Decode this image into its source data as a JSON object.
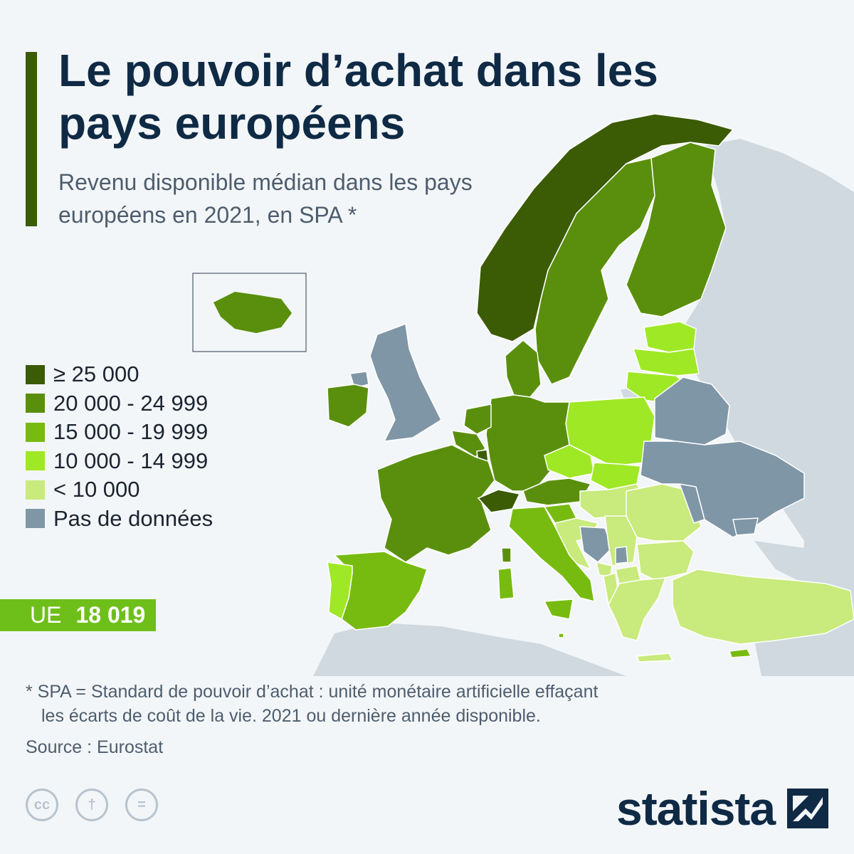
{
  "title": "Le pouvoir d’achat dans les pays européens",
  "subtitle": "Revenu disponible médian dans les pays européens en 2021, en SPA *",
  "legend": [
    {
      "label": "≥ 25 000",
      "color": "#3b5b05"
    },
    {
      "label": "20 000 - 24 999",
      "color": "#5a8f0d"
    },
    {
      "label": "15 000 - 19 999",
      "color": "#78bb10"
    },
    {
      "label": "10 000 - 14 999",
      "color": "#9fe826"
    },
    {
      "label": "< 10 000",
      "color": "#c9ea7c"
    },
    {
      "label": "Pas de données",
      "color": "#7f96a6"
    }
  ],
  "colors": {
    "non_europe": "#cfd9df",
    "sea": "#f3f6f8",
    "border": "#ffffff"
  },
  "eu": {
    "label": "UE",
    "value": "18 019"
  },
  "footnote": {
    "line1": "* SPA = Standard de pouvoir d’achat : unité monétaire artificielle effaçant",
    "line2": "les écarts de coût de la vie. 2021 ou dernière année disponible."
  },
  "source": "Source : Eurostat",
  "license_icons": [
    {
      "name": "cc-icon",
      "glyph": "cc"
    },
    {
      "name": "attribution-icon",
      "glyph": "†"
    },
    {
      "name": "no-derivatives-icon",
      "glyph": "="
    }
  ],
  "brand": "statista",
  "map": {
    "countries": [
      {
        "name": "Norvège",
        "class": 0
      },
      {
        "name": "Suisse",
        "class": 0
      },
      {
        "name": "Luxembourg",
        "class": 0
      },
      {
        "name": "Suède",
        "class": 1
      },
      {
        "name": "Finlande",
        "class": 1
      },
      {
        "name": "Danemark",
        "class": 1
      },
      {
        "name": "Allemagne",
        "class": 1
      },
      {
        "name": "France",
        "class": 1
      },
      {
        "name": "Pays-Bas",
        "class": 1
      },
      {
        "name": "Belgique",
        "class": 1
      },
      {
        "name": "Autriche",
        "class": 1
      },
      {
        "name": "Irlande",
        "class": 1
      },
      {
        "name": "Islande",
        "class": 1
      },
      {
        "name": "Italie",
        "class": 2
      },
      {
        "name": "Espagne",
        "class": 2
      },
      {
        "name": "Slovénie",
        "class": 2
      },
      {
        "name": "Malte",
        "class": 2
      },
      {
        "name": "Chypre",
        "class": 2
      },
      {
        "name": "Pologne",
        "class": 3
      },
      {
        "name": "Tchéquie",
        "class": 3
      },
      {
        "name": "Estonie",
        "class": 3
      },
      {
        "name": "Lituanie",
        "class": 3
      },
      {
        "name": "Lettonie",
        "class": 3
      },
      {
        "name": "Portugal",
        "class": 3
      },
      {
        "name": "Slovaquie",
        "class": 3
      },
      {
        "name": "Hongrie",
        "class": 4
      },
      {
        "name": "Roumanie",
        "class": 4
      },
      {
        "name": "Bulgarie",
        "class": 4
      },
      {
        "name": "Grèce",
        "class": 4
      },
      {
        "name": "Croatie",
        "class": 4
      },
      {
        "name": "Serbie",
        "class": 4
      },
      {
        "name": "Turquie",
        "class": 4
      },
      {
        "name": "Macédoine du Nord",
        "class": 4
      },
      {
        "name": "Albanie",
        "class": 4
      },
      {
        "name": "Monténégro",
        "class": 4
      },
      {
        "name": "Royaume-Uni",
        "class": 5
      },
      {
        "name": "Ukraine",
        "class": 5
      },
      {
        "name": "Biélorussie",
        "class": 5
      },
      {
        "name": "Moldavie",
        "class": 5
      },
      {
        "name": "Bosnie-Herzégovine",
        "class": 5
      },
      {
        "name": "Kosovo",
        "class": 5
      }
    ]
  }
}
